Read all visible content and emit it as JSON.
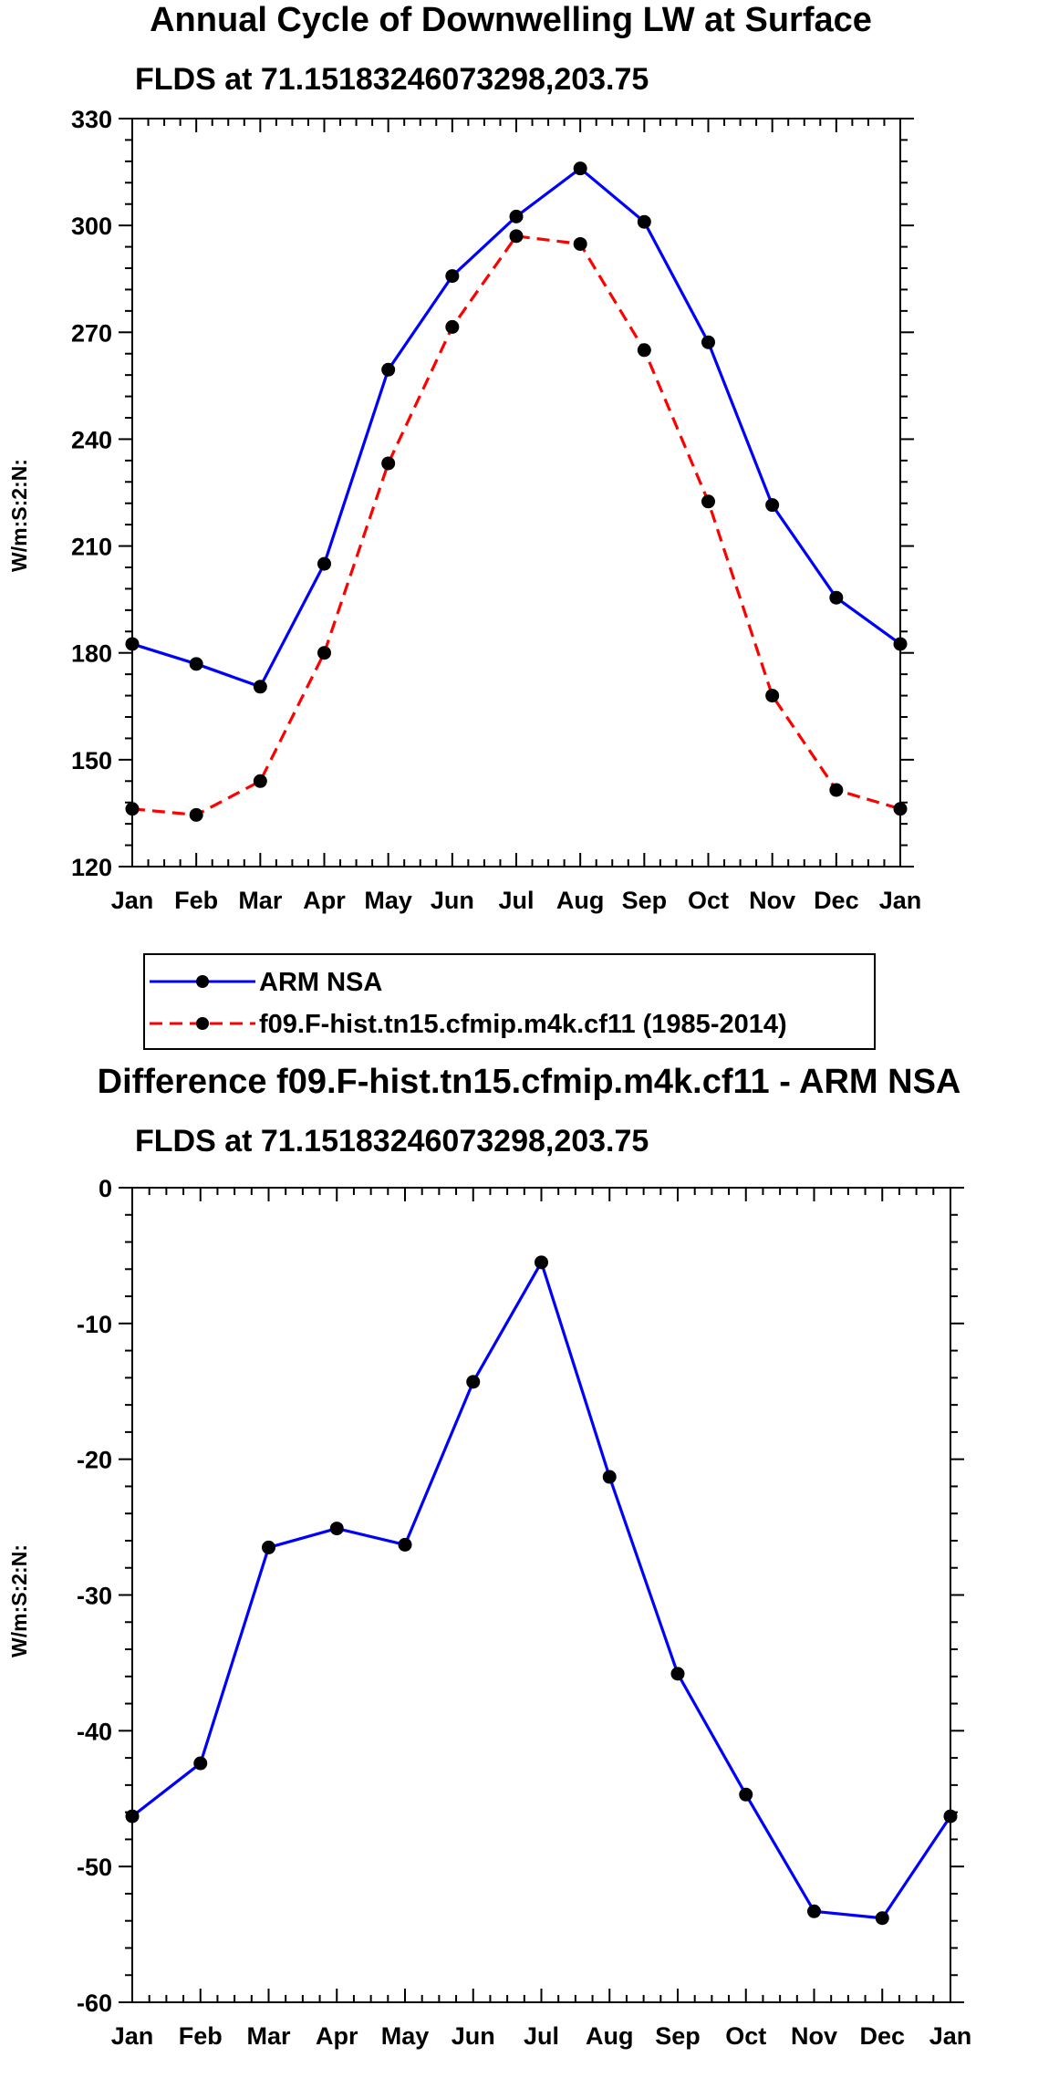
{
  "chart_data": [
    {
      "type": "line",
      "title": "Annual Cycle of Downwelling LW at Surface",
      "subtitle": "FLDS at 71.15183246073298,203.75",
      "ylabel": "W/m:S:2:N:",
      "xlabel": "",
      "categories": [
        "Jan",
        "Feb",
        "Mar",
        "Apr",
        "May",
        "Jun",
        "Jul",
        "Aug",
        "Sep",
        "Oct",
        "Nov",
        "Dec",
        "Jan"
      ],
      "ylim": [
        120,
        330
      ],
      "yticks": [
        120,
        150,
        180,
        210,
        240,
        270,
        300,
        330
      ],
      "legend_position": "below",
      "series": [
        {
          "name": "ARM NSA",
          "color": "#0000ff",
          "style": "solid",
          "values": [
            182.5,
            176.9,
            170.5,
            205.0,
            259.5,
            285.8,
            302.5,
            316.0,
            301.0,
            267.2,
            221.5,
            195.5,
            182.5
          ]
        },
        {
          "name": "f09.F-hist.tn15.cfmip.m4k.cf11 (1985-2014)",
          "color": "#ff0000",
          "style": "dashed",
          "values": [
            136.2,
            134.5,
            144.0,
            180.0,
            233.2,
            271.5,
            297.0,
            294.8,
            265.0,
            222.5,
            168.0,
            141.5,
            136.2
          ]
        }
      ]
    },
    {
      "type": "line",
      "title": "Difference f09.F-hist.tn15.cfmip.m4k.cf11 - ARM NSA",
      "subtitle": "FLDS at 71.15183246073298,203.75",
      "ylabel": "W/m:S:2:N:",
      "xlabel": "",
      "categories": [
        "Jan",
        "Feb",
        "Mar",
        "Apr",
        "May",
        "Jun",
        "Jul",
        "Aug",
        "Sep",
        "Oct",
        "Nov",
        "Dec",
        "Jan"
      ],
      "ylim": [
        -60,
        0
      ],
      "yticks": [
        -60,
        -50,
        -40,
        -30,
        -20,
        -10,
        0
      ],
      "series": [
        {
          "name": "Difference",
          "color": "#0000ff",
          "style": "solid",
          "values": [
            -46.3,
            -42.4,
            -26.5,
            -25.1,
            -26.3,
            -14.3,
            -5.5,
            -21.3,
            -35.8,
            -44.7,
            -53.3,
            -53.8,
            -46.3
          ]
        }
      ]
    }
  ]
}
